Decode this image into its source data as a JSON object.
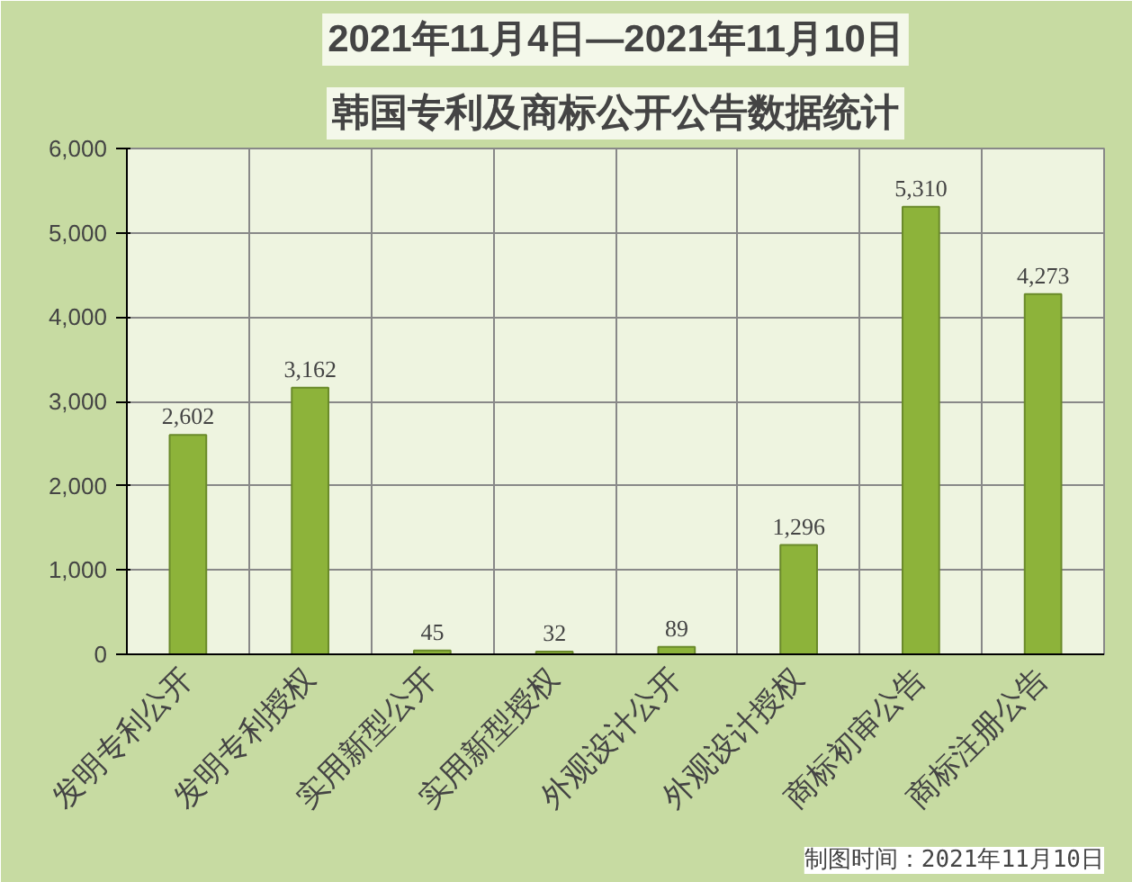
{
  "chart_data": {
    "type": "bar",
    "title": "2021年11月4日—2021年11月10日",
    "subtitle": "韩国专利及商标公开公告数据统计",
    "categories": [
      "发明专利公开",
      "发明专利授权",
      "实用新型公开",
      "实用新型授权",
      "外观设计公开",
      "外观设计授权",
      "商标初审公告",
      "商标注册公告"
    ],
    "values": [
      2602,
      3162,
      45,
      32,
      89,
      1296,
      5310,
      4273
    ],
    "color": "#8db33a",
    "ylim": [
      0,
      6000
    ],
    "yticks": [
      {
        "value": 0,
        "label": "0"
      },
      {
        "value": 1000,
        "label": "1,000"
      },
      {
        "value": 2000,
        "label": "2,000"
      },
      {
        "value": 3000,
        "label": "3,000"
      },
      {
        "value": 4000,
        "label": "4,000"
      },
      {
        "value": 5000,
        "label": "5,000"
      },
      {
        "value": 6000,
        "label": "6,000"
      }
    ],
    "value_labels": [
      "2,602",
      "3,162",
      "45",
      "32",
      "89",
      "1,296",
      "5,310",
      "4,273"
    ],
    "grid": true,
    "annotations": [
      "制图时间：2021年11月10日"
    ]
  }
}
